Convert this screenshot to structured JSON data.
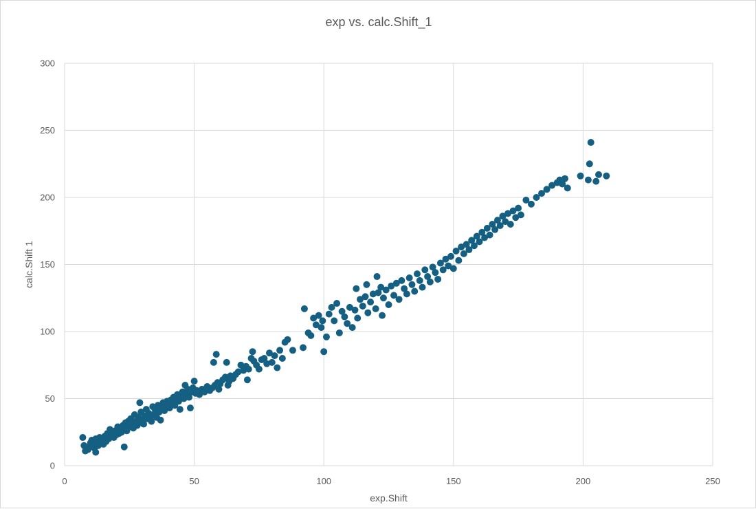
{
  "chart_data": {
    "type": "scatter",
    "title": "exp vs. calc.Shift_1",
    "xlabel": "exp.Shift",
    "ylabel": "calc.Shift 1",
    "xlim": [
      0,
      250
    ],
    "ylim": [
      0,
      300
    ],
    "x_ticks": [
      "0",
      "50",
      "100",
      "150",
      "200",
      "250"
    ],
    "y_ticks": [
      "0",
      "50",
      "100",
      "150",
      "200",
      "250",
      "300"
    ],
    "grid": true,
    "legend": "none",
    "marker_color": "#156082",
    "series": [
      {
        "points": [
          [
            7,
            21
          ],
          [
            7.5,
            15
          ],
          [
            8,
            11
          ],
          [
            9,
            12
          ],
          [
            9.5,
            14
          ],
          [
            10,
            17
          ],
          [
            10.5,
            19
          ],
          [
            11,
            16
          ],
          [
            11.5,
            13
          ],
          [
            12,
            10
          ],
          [
            12,
            20
          ],
          [
            12.5,
            18
          ],
          [
            13,
            15
          ],
          [
            13.5,
            21
          ],
          [
            14,
            17
          ],
          [
            14.5,
            19
          ],
          [
            15,
            16
          ],
          [
            15.5,
            22
          ],
          [
            16,
            18
          ],
          [
            16.5,
            24
          ],
          [
            17,
            20
          ],
          [
            17.5,
            27
          ],
          [
            18,
            22
          ],
          [
            18.5,
            25
          ],
          [
            19,
            21
          ],
          [
            19.5,
            26
          ],
          [
            20,
            23
          ],
          [
            20.5,
            29
          ],
          [
            21,
            24
          ],
          [
            21.5,
            27
          ],
          [
            22,
            25
          ],
          [
            22.5,
            30
          ],
          [
            23,
            14
          ],
          [
            23,
            28
          ],
          [
            23.5,
            32
          ],
          [
            24,
            26
          ],
          [
            24.5,
            33
          ],
          [
            25,
            29
          ],
          [
            25.5,
            35
          ],
          [
            26,
            31
          ],
          [
            26.5,
            28
          ],
          [
            27,
            38
          ],
          [
            27.5,
            33
          ],
          [
            28,
            30
          ],
          [
            28.5,
            36
          ],
          [
            29,
            47
          ],
          [
            29,
            32
          ],
          [
            29.5,
            40
          ],
          [
            30,
            34
          ],
          [
            30.5,
            31
          ],
          [
            31,
            37
          ],
          [
            31.5,
            42
          ],
          [
            32,
            35
          ],
          [
            32.5,
            39
          ],
          [
            33,
            36
          ],
          [
            33.5,
            33
          ],
          [
            34,
            44
          ],
          [
            34.5,
            38
          ],
          [
            35,
            41
          ],
          [
            35.5,
            36
          ],
          [
            36,
            45
          ],
          [
            36.5,
            40
          ],
          [
            37,
            34
          ],
          [
            37.5,
            43
          ],
          [
            38,
            47
          ],
          [
            38.5,
            41
          ],
          [
            39,
            44
          ],
          [
            39.5,
            48
          ],
          [
            40,
            46
          ],
          [
            40.5,
            43
          ],
          [
            41,
            49
          ],
          [
            41.5,
            47
          ],
          [
            42,
            51
          ],
          [
            42.5,
            45
          ],
          [
            43,
            50
          ],
          [
            43.5,
            53
          ],
          [
            44,
            48
          ],
          [
            44.5,
            42
          ],
          [
            45,
            52
          ],
          [
            45.5,
            55
          ],
          [
            46,
            50
          ],
          [
            46.5,
            60
          ],
          [
            47,
            53
          ],
          [
            47.5,
            57
          ],
          [
            48,
            51
          ],
          [
            48.5,
            43
          ],
          [
            49,
            55
          ],
          [
            49.5,
            58
          ],
          [
            50,
            63
          ],
          [
            50.5,
            54
          ],
          [
            51,
            56
          ],
          [
            52,
            53
          ],
          [
            53,
            57
          ],
          [
            54,
            55
          ],
          [
            55,
            59
          ],
          [
            56,
            56
          ],
          [
            57,
            58
          ],
          [
            57.5,
            77
          ],
          [
            58,
            60
          ],
          [
            58.5,
            83
          ],
          [
            59,
            62
          ],
          [
            59.5,
            57
          ],
          [
            60,
            61
          ],
          [
            61,
            64
          ],
          [
            62,
            66
          ],
          [
            62.5,
            77
          ],
          [
            63,
            60
          ],
          [
            63.5,
            63
          ],
          [
            64,
            67
          ],
          [
            65,
            65
          ],
          [
            66,
            68
          ],
          [
            67,
            70
          ],
          [
            68,
            75
          ],
          [
            69,
            71
          ],
          [
            70,
            74
          ],
          [
            70.5,
            64
          ],
          [
            71,
            72
          ],
          [
            72,
            80
          ],
          [
            72.5,
            85
          ],
          [
            73,
            78
          ],
          [
            74,
            75
          ],
          [
            75,
            72
          ],
          [
            76,
            79
          ],
          [
            77,
            80
          ],
          [
            78,
            76
          ],
          [
            79,
            84
          ],
          [
            80,
            77
          ],
          [
            81,
            82
          ],
          [
            82,
            73
          ],
          [
            83,
            86
          ],
          [
            84,
            80
          ],
          [
            85,
            92
          ],
          [
            86,
            94
          ],
          [
            88,
            86
          ],
          [
            92,
            88
          ],
          [
            92.5,
            117
          ],
          [
            94,
            99
          ],
          [
            95,
            97
          ],
          [
            96,
            110
          ],
          [
            97,
            105
          ],
          [
            98,
            112
          ],
          [
            99,
            103
          ],
          [
            99.5,
            108
          ],
          [
            100,
            85
          ],
          [
            101,
            96
          ],
          [
            102,
            113
          ],
          [
            103,
            118
          ],
          [
            104,
            108
          ],
          [
            105,
            121
          ],
          [
            106,
            99
          ],
          [
            107,
            115
          ],
          [
            108,
            111
          ],
          [
            109,
            106
          ],
          [
            110,
            118
          ],
          [
            111,
            103
          ],
          [
            112,
            116
          ],
          [
            112.5,
            132
          ],
          [
            113,
            110
          ],
          [
            114,
            124
          ],
          [
            115,
            119
          ],
          [
            116,
            126
          ],
          [
            116.5,
            135
          ],
          [
            117,
            114
          ],
          [
            118,
            122
          ],
          [
            119,
            128
          ],
          [
            120,
            117
          ],
          [
            120.5,
            141
          ],
          [
            121,
            129
          ],
          [
            122,
            133
          ],
          [
            122.5,
            112
          ],
          [
            123,
            125
          ],
          [
            124,
            131
          ],
          [
            125,
            120
          ],
          [
            126,
            134
          ],
          [
            127,
            127
          ],
          [
            128,
            136
          ],
          [
            129,
            124
          ],
          [
            130,
            138
          ],
          [
            131,
            132
          ],
          [
            132,
            128
          ],
          [
            133,
            140
          ],
          [
            134,
            135
          ],
          [
            135,
            130
          ],
          [
            136,
            143
          ],
          [
            137,
            138
          ],
          [
            138,
            133
          ],
          [
            139,
            146
          ],
          [
            140,
            141
          ],
          [
            141,
            137
          ],
          [
            142,
            148
          ],
          [
            143,
            144
          ],
          [
            144,
            139
          ],
          [
            145,
            151
          ],
          [
            146,
            146
          ],
          [
            147,
            154
          ],
          [
            148,
            149
          ],
          [
            149,
            156
          ],
          [
            150,
            147
          ],
          [
            151,
            160
          ],
          [
            152,
            153
          ],
          [
            153,
            163
          ],
          [
            154,
            158
          ],
          [
            155,
            165
          ],
          [
            156,
            161
          ],
          [
            157,
            168
          ],
          [
            158,
            164
          ],
          [
            159,
            171
          ],
          [
            160,
            167
          ],
          [
            161,
            174
          ],
          [
            162,
            170
          ],
          [
            163,
            177
          ],
          [
            164,
            172
          ],
          [
            165,
            180
          ],
          [
            166,
            176
          ],
          [
            167,
            183
          ],
          [
            168,
            179
          ],
          [
            169,
            186
          ],
          [
            170,
            182
          ],
          [
            171,
            188
          ],
          [
            172,
            180
          ],
          [
            173,
            190
          ],
          [
            174,
            185
          ],
          [
            175,
            192
          ],
          [
            176,
            187
          ],
          [
            178,
            198
          ],
          [
            180,
            195
          ],
          [
            182,
            200
          ],
          [
            184,
            203
          ],
          [
            186,
            206
          ],
          [
            188,
            209
          ],
          [
            190,
            211
          ],
          [
            191,
            213
          ],
          [
            192,
            210
          ],
          [
            193,
            214
          ],
          [
            194,
            207
          ],
          [
            199,
            216
          ],
          [
            202,
            213
          ],
          [
            202.5,
            225
          ],
          [
            203,
            241
          ],
          [
            205,
            212
          ],
          [
            206,
            217
          ],
          [
            209,
            216
          ]
        ]
      }
    ]
  }
}
